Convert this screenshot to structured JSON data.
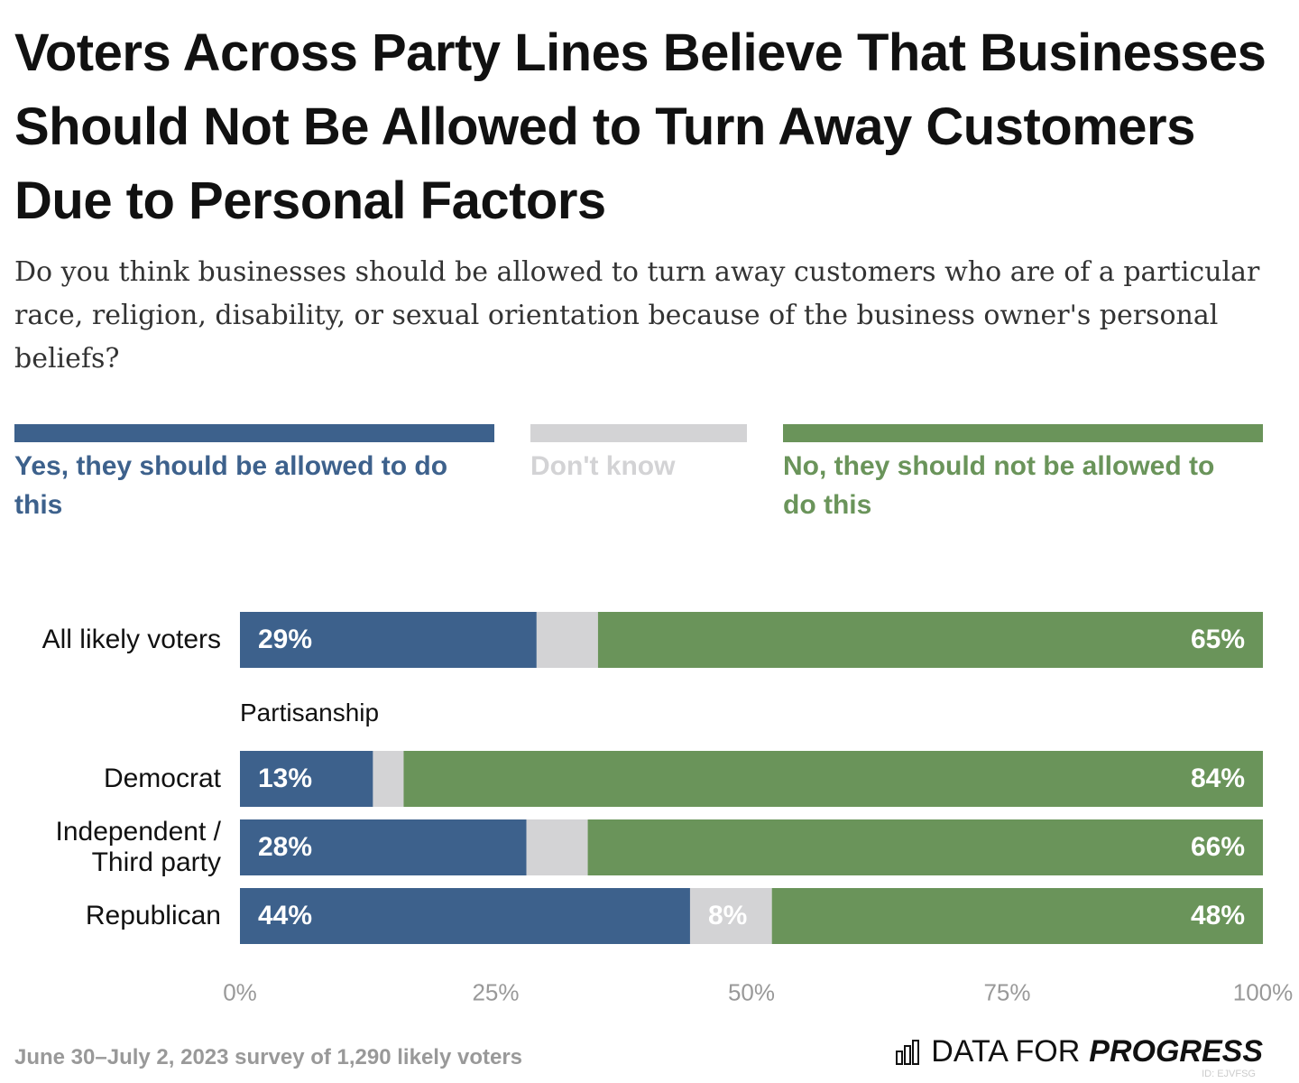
{
  "chart_data": {
    "type": "stacked-bar-horizontal",
    "title": "Voters Across Party Lines Believe That Businesses Should Not Be Allowed to Turn Away Customers Due to Personal Factors",
    "subtitle": "Do you think businesses should be allowed to turn away customers who are of a particular race, religion, disability, or sexual orientation because of the business owner's personal beliefs?",
    "categories": [
      "All likely voters",
      "Democrat",
      "Independent / Third party",
      "Republican"
    ],
    "group_label": "Partisanship",
    "series": [
      {
        "name": "Yes, they should be allowed to do this",
        "color": "#3d618c",
        "values": [
          29,
          13,
          28,
          44
        ],
        "value_labels": [
          "29%",
          "13%",
          "28%",
          "44%"
        ]
      },
      {
        "name": "Don't know",
        "color": "#d3d3d5",
        "values": [
          6,
          3,
          6,
          8
        ],
        "value_labels": [
          null,
          null,
          null,
          "8%"
        ]
      },
      {
        "name": "No, they should not be allowed to do this",
        "color": "#6a945a",
        "values": [
          65,
          84,
          66,
          48
        ],
        "value_labels": [
          "65%",
          "84%",
          "66%",
          "48%"
        ]
      }
    ],
    "xlim": [
      0,
      100
    ],
    "xticks": [
      {
        "value": 0,
        "label": "0%"
      },
      {
        "value": 25,
        "label": "25%"
      },
      {
        "value": 50,
        "label": "50%"
      },
      {
        "value": 75,
        "label": "75%"
      },
      {
        "value": 100,
        "label": "100%"
      }
    ],
    "source_note": "June 30–July 2, 2023 survey of 1,290 likely voters",
    "logo": {
      "light": "DATA FOR",
      "bold": "PROGRESS"
    },
    "id_note": "ID: EJVFSG"
  }
}
